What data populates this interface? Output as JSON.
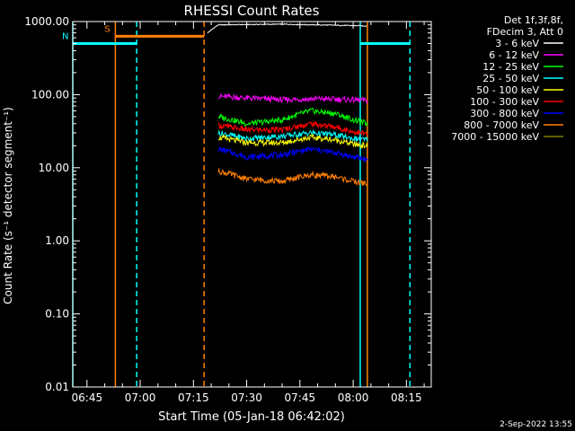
{
  "chart_data": {
    "type": "line",
    "title": "RHESSI Count Rates",
    "xlabel": "Start Time (05-Jan-18 06:42:02)",
    "ylabel": "Count Rate (s⁻¹ detector segment⁻¹)",
    "yscale": "log",
    "ylim": [
      0.01,
      1000
    ],
    "xlim": [
      "06:41",
      "08:22"
    ],
    "x_ticks": [
      "06:45",
      "07:00",
      "07:15",
      "07:30",
      "07:45",
      "08:00",
      "08:15"
    ],
    "y_ticks": [
      "0.01",
      "0.10",
      "1.00",
      "10.00",
      "100.00",
      "1000.00"
    ],
    "grid": false,
    "legend_position": "top-right",
    "legend_header": [
      "Det 1f,3f,8f,",
      "FDecim 3, Att 0"
    ],
    "footer": "2-Sep-2022 13:55",
    "series": [
      {
        "name": "3 - 6 keV",
        "color": "#ffffff",
        "x": [
          "07:19",
          "07:22",
          "07:30",
          "07:40",
          "07:50",
          "08:00",
          "08:04"
        ],
        "values": [
          700,
          900,
          910,
          920,
          900,
          880,
          870
        ]
      },
      {
        "name": "6 - 12 keV",
        "color": "#ff00ff",
        "x": [
          "07:22",
          "07:30",
          "07:40",
          "07:50",
          "08:00",
          "08:04"
        ],
        "values": [
          95,
          90,
          85,
          88,
          85,
          83
        ]
      },
      {
        "name": "12 - 25 keV",
        "color": "#00ff00",
        "x": [
          "07:22",
          "07:30",
          "07:40",
          "07:48",
          "07:55",
          "08:00",
          "08:04"
        ],
        "values": [
          50,
          40,
          45,
          60,
          55,
          45,
          40
        ]
      },
      {
        "name": "25 - 50 keV",
        "color": "#00ffff",
        "x": [
          "07:22",
          "07:30",
          "07:40",
          "07:48",
          "07:55",
          "08:00",
          "08:04"
        ],
        "values": [
          30,
          25,
          27,
          30,
          28,
          25,
          24
        ]
      },
      {
        "name": "50 - 100 keV",
        "color": "#ffff00",
        "x": [
          "07:22",
          "07:30",
          "07:40",
          "07:48",
          "07:55",
          "08:00",
          "08:04"
        ],
        "values": [
          26,
          22,
          22,
          26,
          24,
          21,
          20
        ]
      },
      {
        "name": "100 - 300 keV",
        "color": "#ff0000",
        "x": [
          "07:22",
          "07:30",
          "07:40",
          "07:48",
          "07:55",
          "08:00",
          "08:04"
        ],
        "values": [
          38,
          33,
          33,
          40,
          36,
          31,
          29
        ]
      },
      {
        "name": "300 - 800 keV",
        "color": "#0000ff",
        "x": [
          "07:22",
          "07:30",
          "07:40",
          "07:48",
          "07:55",
          "08:00",
          "08:04"
        ],
        "values": [
          18,
          14,
          15,
          18,
          16,
          14,
          13
        ]
      },
      {
        "name": "800 - 7000 keV",
        "color": "#ff8000",
        "x": [
          "07:22",
          "07:30",
          "07:40",
          "07:48",
          "07:55",
          "08:00",
          "08:04"
        ],
        "values": [
          9,
          7,
          6.5,
          8,
          7.5,
          6.5,
          6
        ]
      },
      {
        "name": "7000 - 15000 keV",
        "color": "#808000",
        "x": [],
        "values": []
      }
    ],
    "annotations": [
      {
        "label": "S",
        "color": "#ff8000",
        "x_range": [
          "06:53",
          "07:18"
        ],
        "y": 630,
        "style": "solid"
      },
      {
        "label": "N",
        "color": "#00ffff",
        "x_range": [
          "06:41",
          "06:59"
        ],
        "y": 500,
        "style": "solid"
      },
      {
        "label": "",
        "color": "#00ffff",
        "x_range": [
          "08:02",
          "08:16"
        ],
        "y": 500,
        "style": "solid"
      }
    ],
    "vertical_markers": [
      {
        "x": "06:41",
        "color": "#00ffff",
        "style": "solid"
      },
      {
        "x": "06:53",
        "color": "#ff8000",
        "style": "solid"
      },
      {
        "x": "06:59",
        "color": "#00ffff",
        "style": "dashed"
      },
      {
        "x": "07:18",
        "color": "#ff8000",
        "style": "dashed"
      },
      {
        "x": "08:02",
        "color": "#00ffff",
        "style": "solid"
      },
      {
        "x": "08:04",
        "color": "#ff8000",
        "style": "solid"
      },
      {
        "x": "08:16",
        "color": "#00ffff",
        "style": "dashed"
      }
    ]
  }
}
